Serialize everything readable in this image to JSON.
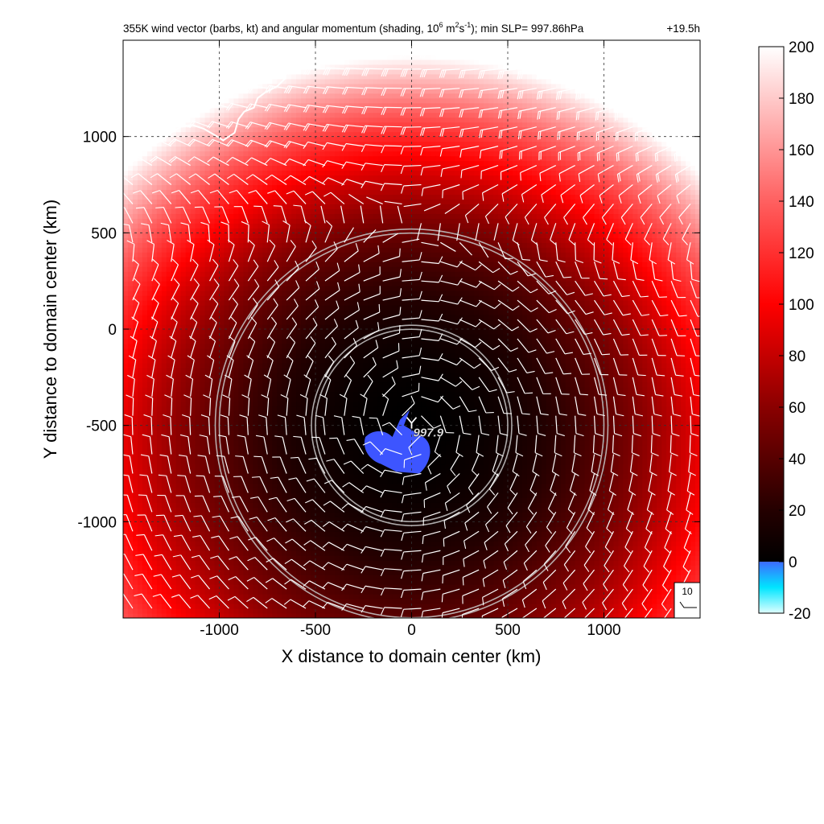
{
  "chart_data": {
    "type": "heatmap",
    "title_parts": {
      "prefix": "355K wind vector (barbs, kt) and angular momentum (shading, 10",
      "sup1": "6",
      "mid1": " m",
      "sup2": "2",
      "mid2": "s",
      "sup3": "-1",
      "suffix": "); min SLP= 997.86hPa"
    },
    "time_label": "+19.5h",
    "xlabel": "X distance to domain center (km)",
    "ylabel": "Y distance to domain center (km)",
    "xlim": [
      -1500,
      1500
    ],
    "ylim": [
      -1500,
      1500
    ],
    "x_ticks": [
      -1000,
      -500,
      0,
      500,
      1000
    ],
    "y_ticks": [
      -1000,
      -500,
      0,
      500,
      1000
    ],
    "x_tick_labels": [
      "-1000",
      "-500",
      "0",
      "500",
      "1000"
    ],
    "y_tick_labels": [
      "-1000",
      "-500",
      "0",
      "500",
      "1000"
    ],
    "grid": true,
    "colorbar": {
      "range": [
        -20,
        200
      ],
      "ticks": [
        -20,
        0,
        20,
        40,
        60,
        80,
        100,
        120,
        140,
        160,
        180,
        200
      ],
      "tick_labels": [
        "-20",
        "0",
        "20",
        "40",
        "60",
        "80",
        "100",
        "120",
        "140",
        "160",
        "180",
        "200"
      ],
      "stops": [
        {
          "value": -20,
          "color": "#e0ffff"
        },
        {
          "value": -10,
          "color": "#00e5ff"
        },
        {
          "value": 0,
          "color": "#3d6bff"
        },
        {
          "value": 0.01,
          "color": "#000000"
        },
        {
          "value": 20,
          "color": "#240000"
        },
        {
          "value": 60,
          "color": "#8a0000"
        },
        {
          "value": 100,
          "color": "#ff0000"
        },
        {
          "value": 140,
          "color": "#ff6060"
        },
        {
          "value": 200,
          "color": "#ffffff"
        }
      ]
    },
    "storm_center": {
      "x": 0,
      "y": -500,
      "label": "997.9"
    },
    "rings_km": [
      500,
      1000
    ],
    "reference_barb": {
      "label": "10",
      "speed_kt": 10
    }
  },
  "colors": {
    "ring": "#c8c8c8",
    "coast": "#ffffff",
    "barb": "#ffffff",
    "negative_patch": "#3d55ff"
  }
}
